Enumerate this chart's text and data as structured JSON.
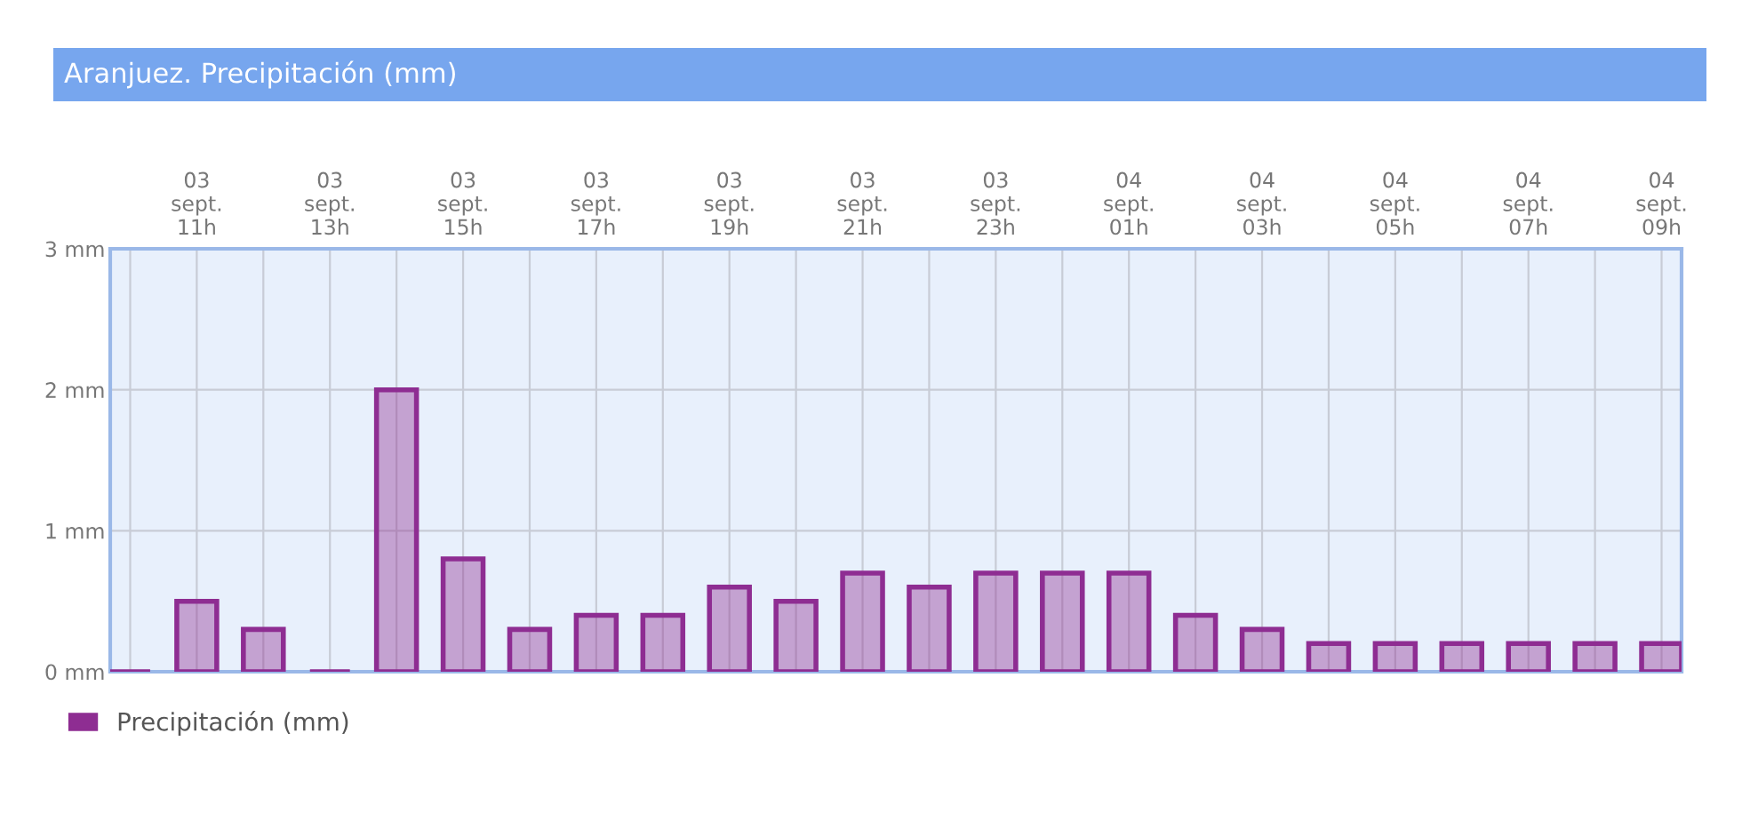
{
  "chart_data": {
    "type": "bar",
    "title": "Aranjuez. Precipitación (mm)",
    "categories": [
      null,
      "03\nsept.\n11h",
      null,
      "03\nsept.\n13h",
      null,
      "03\nsept.\n15h",
      null,
      "03\nsept.\n17h",
      null,
      "03\nsept.\n19h",
      null,
      "03\nsept.\n21h",
      null,
      "03\nsept.\n23h",
      null,
      "04\nsept.\n01h",
      null,
      "04\nsept.\n03h",
      null,
      "04\nsept.\n05h",
      null,
      "04\nsept.\n07h",
      null,
      "04\nsept.\n09h"
    ],
    "series": [
      {
        "name": "Precipitación (mm)",
        "color": "#8e2d92",
        "values": [
          0,
          0.5,
          0.3,
          0,
          2.0,
          0.8,
          0.3,
          0.4,
          0.4,
          0.6,
          0.5,
          0.7,
          0.6,
          0.7,
          0.7,
          0.7,
          0.4,
          0.3,
          0.2,
          0.2,
          0.2,
          0.2,
          0.2,
          0.2
        ]
      }
    ],
    "ylim": [
      0,
      3
    ],
    "yticks": [
      {
        "value": 0,
        "label": "0 mm"
      },
      {
        "value": 1,
        "label": "1 mm"
      },
      {
        "value": 2,
        "label": "2 mm"
      },
      {
        "value": 3,
        "label": "3 mm"
      }
    ],
    "grid": true,
    "legend": "bottom left"
  }
}
